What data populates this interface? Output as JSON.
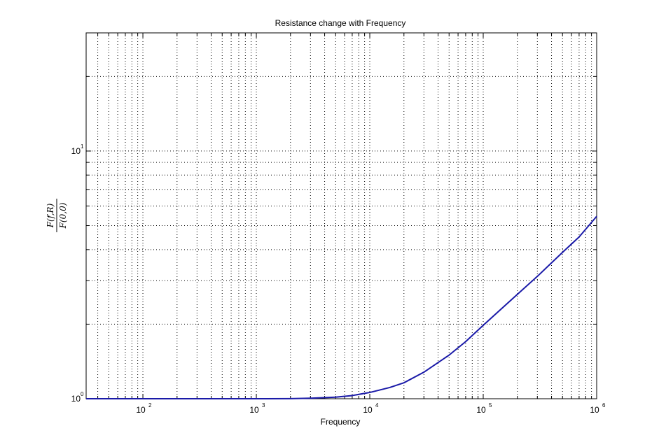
{
  "chart_data": {
    "type": "line",
    "title": "Resistance change with Frequency",
    "xlabel": "Frequency",
    "ylabel": {
      "numerator": "F(f,R)",
      "denominator": "F(0,0)"
    },
    "xscale": "log",
    "yscale": "log",
    "xlim": [
      31.6,
      1000000
    ],
    "ylim": [
      1,
      30
    ],
    "grid": true,
    "x_ticks": [
      {
        "value": 100,
        "base": "10",
        "exp": "2"
      },
      {
        "value": 1000,
        "base": "10",
        "exp": "3"
      },
      {
        "value": 10000,
        "base": "10",
        "exp": "4"
      },
      {
        "value": 100000,
        "base": "10",
        "exp": "5"
      },
      {
        "value": 1000000,
        "base": "10",
        "exp": "6"
      }
    ],
    "y_ticks": [
      {
        "value": 1,
        "base": "10",
        "exp": "0"
      },
      {
        "value": 10,
        "base": "10",
        "exp": "1"
      }
    ],
    "series": [
      {
        "color": "#1a1aa8",
        "x": [
          31.6,
          100,
          300,
          1000,
          2000,
          3000,
          5000,
          7000,
          10000,
          15000,
          20000,
          30000,
          50000,
          70000,
          100000,
          200000,
          300000,
          500000,
          700000,
          1000000
        ],
        "y": [
          1.0,
          1.0,
          1.0,
          1.0,
          1.001,
          1.005,
          1.015,
          1.03,
          1.06,
          1.11,
          1.16,
          1.28,
          1.5,
          1.7,
          1.98,
          2.64,
          3.12,
          3.9,
          4.5,
          5.45
        ]
      }
    ]
  }
}
